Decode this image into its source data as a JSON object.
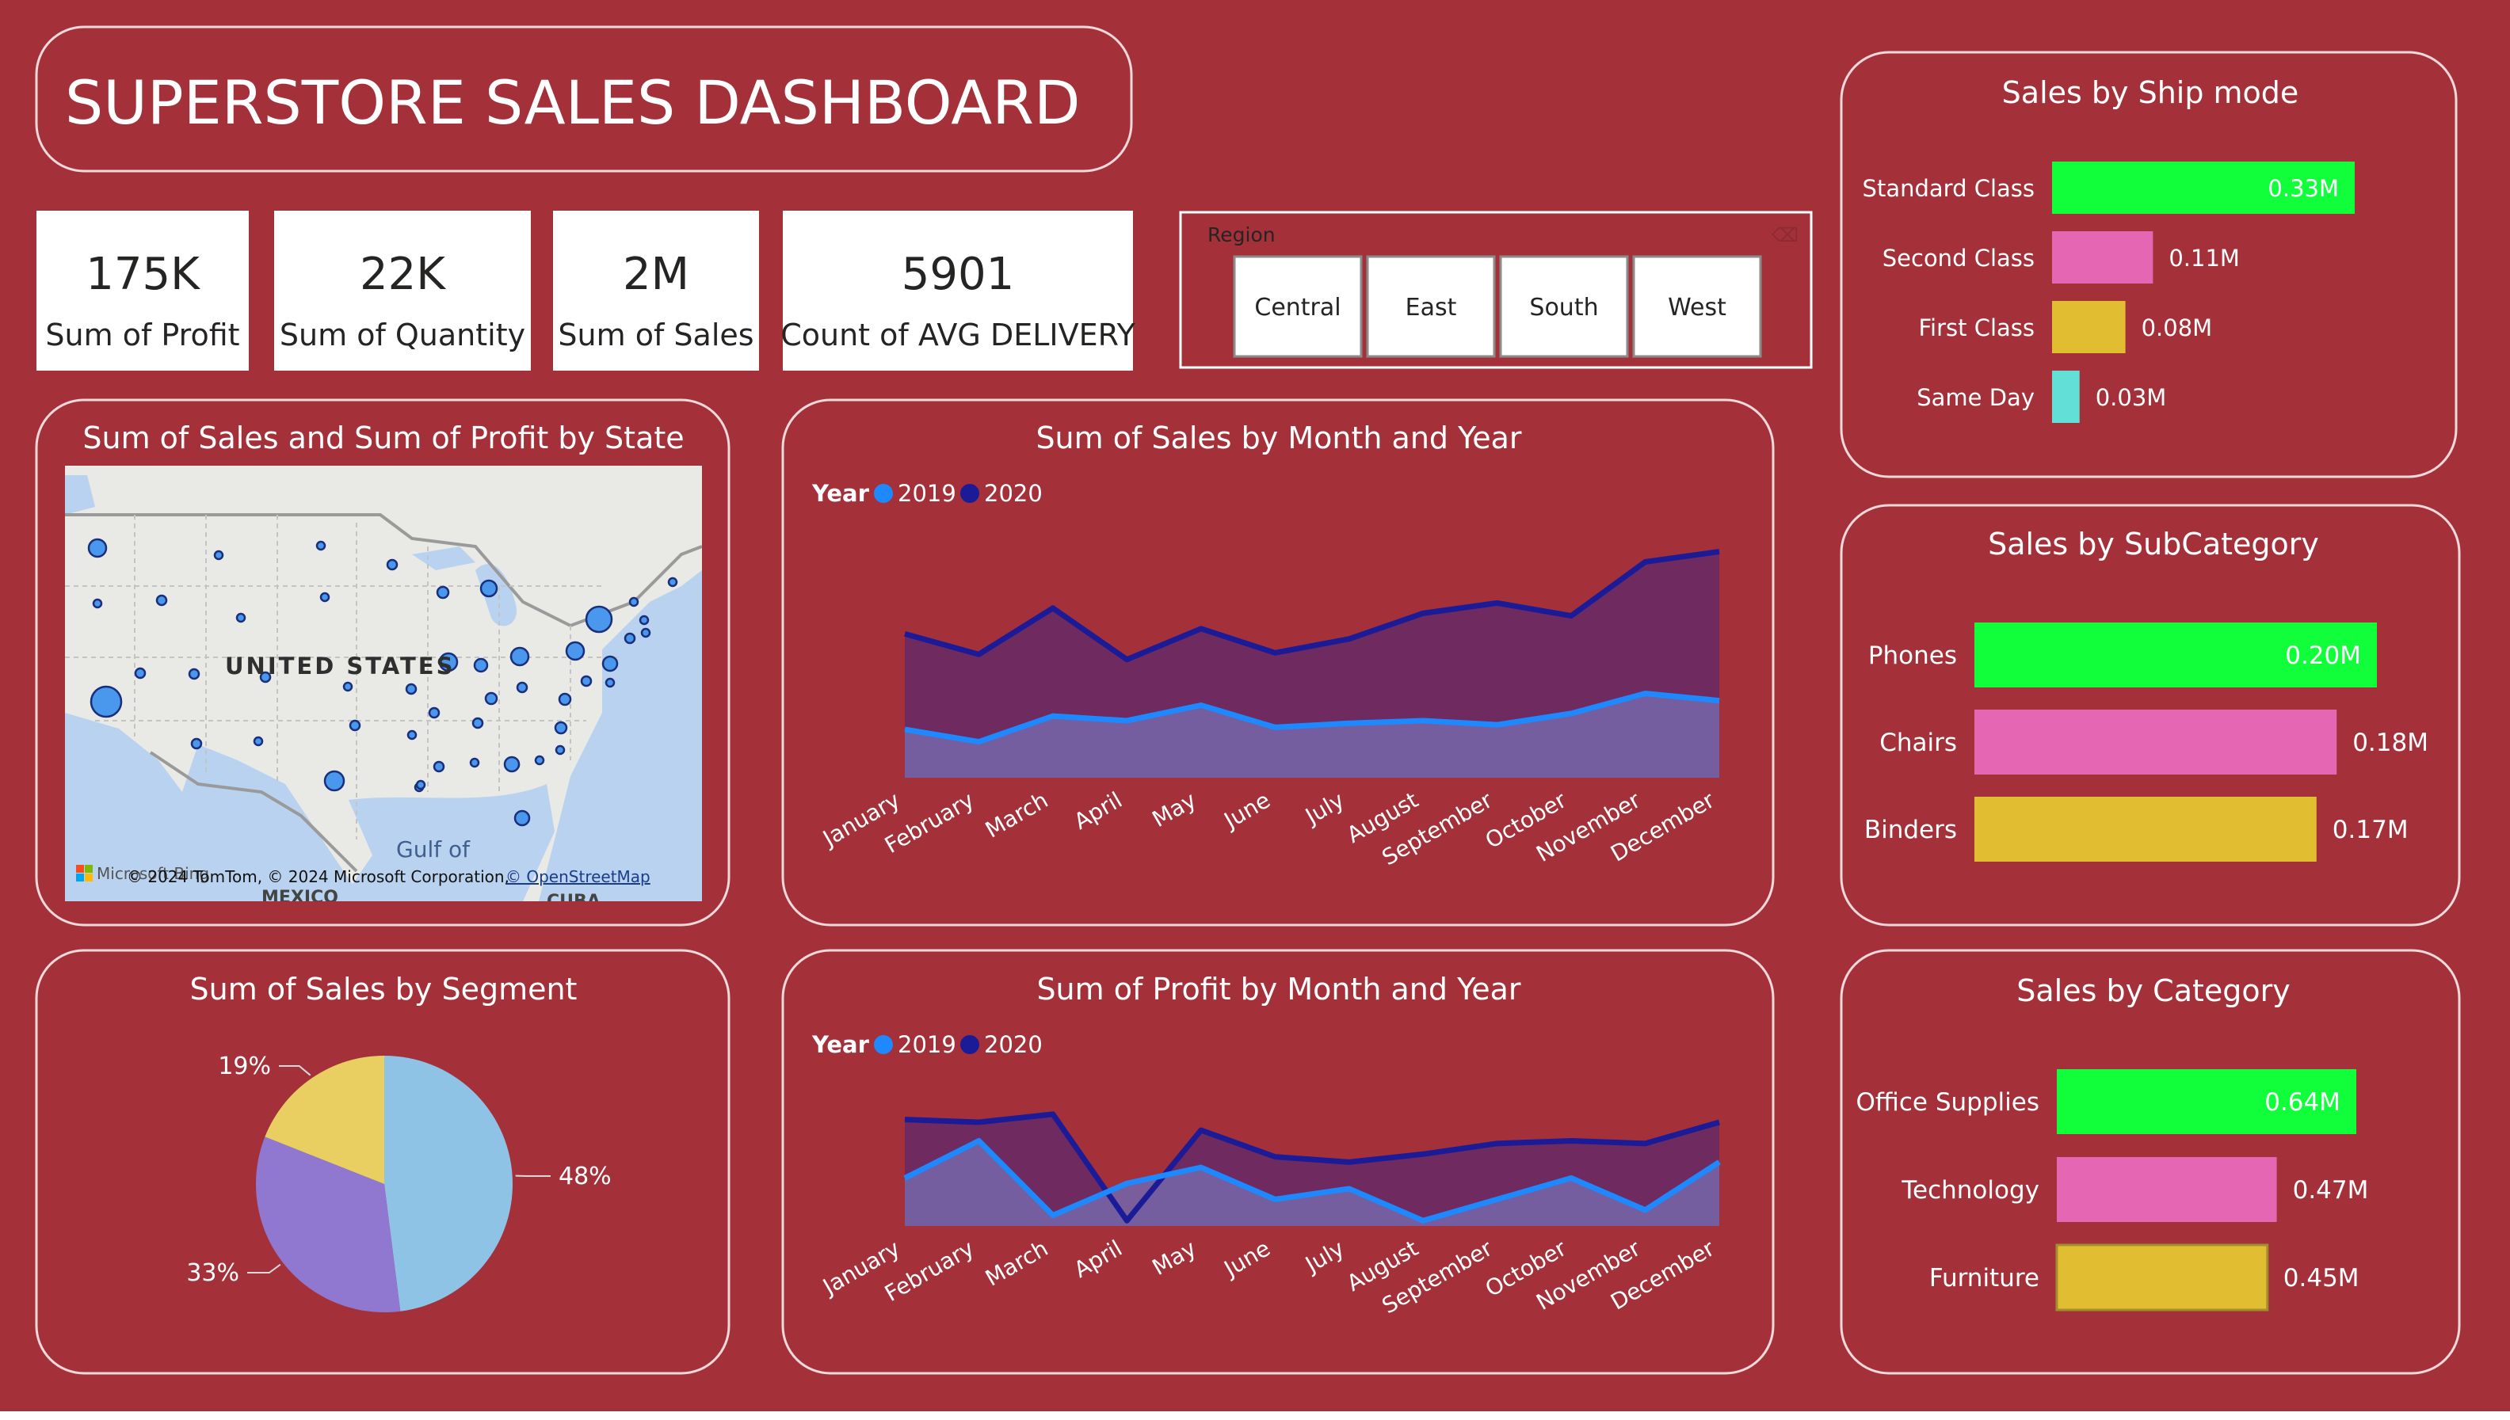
{
  "dashboard": {
    "title": "SUPERSTORE SALES DASHBOARD",
    "colors": {
      "background": "#a4313a",
      "panel_border": "#f1d9db",
      "text": "#ffffff",
      "green": "#11ff3a",
      "pink": "#e567b4",
      "gold": "#e0bd31",
      "cyan": "#62dfd6",
      "series_2019": "#1e88ff",
      "series_2020": "#1b1b98"
    }
  },
  "kpis": [
    {
      "value": "175K",
      "label": "Sum of Profit"
    },
    {
      "value": "22K",
      "label": "Sum of Quantity"
    },
    {
      "value": "2M",
      "label": "Sum of Sales"
    },
    {
      "value": "5901",
      "label": "Count of AVG DELIVERY"
    }
  ],
  "region_slicer": {
    "title": "Region",
    "options": [
      "Central",
      "East",
      "South",
      "West"
    ]
  },
  "map": {
    "title": "Sum of Sales and Sum of Profit by State",
    "country_label": "UNITED STATES",
    "gulf_label": "Gulf of",
    "mexico_label": "MEXICO",
    "cuba_label": "CUBA",
    "attribution": "© 2024 TomTom, © 2024 Microsoft Corporation,",
    "attribution_link": "© OpenStreetMap",
    "logo_text": "Microsoft Bing"
  },
  "legend": {
    "title": "Year",
    "items": [
      "2019",
      "2020"
    ]
  },
  "chart_data": [
    {
      "id": "sales_by_month",
      "type": "area",
      "title": "Sum of Sales by Month and Year",
      "legend_title": "Year",
      "categories": [
        "January",
        "February",
        "March",
        "April",
        "May",
        "June",
        "July",
        "August",
        "September",
        "October",
        "November",
        "December"
      ],
      "series": [
        {
          "name": "2019",
          "values": [
            94,
            70,
            120,
            111,
            141,
            98,
            106,
            111,
            103,
            125,
            164,
            150
          ]
        },
        {
          "name": "2020",
          "values": [
            280,
            240,
            330,
            230,
            290,
            243,
            270,
            320,
            340,
            315,
            420,
            440
          ]
        }
      ],
      "ylim": [
        0,
        450
      ]
    },
    {
      "id": "profit_by_month",
      "type": "area",
      "title": "Sum of Profit by Month and Year",
      "legend_title": "Year",
      "categories": [
        "January",
        "February",
        "March",
        "April",
        "May",
        "June",
        "July",
        "August",
        "September",
        "October",
        "November",
        "December"
      ],
      "series": [
        {
          "name": "2019",
          "values": [
            9,
            16,
            2,
            8,
            11,
            5,
            7,
            1,
            5,
            9,
            3,
            12
          ]
        },
        {
          "name": "2020",
          "values": [
            20,
            19.5,
            21,
            1,
            18,
            13,
            12,
            13.5,
            15.5,
            16,
            15.5,
            19.5
          ]
        }
      ],
      "ylim": [
        0,
        25
      ]
    },
    {
      "id": "sales_by_segment",
      "type": "pie",
      "title": "Sum of Sales by Segment",
      "slices": [
        {
          "value": 48,
          "label": "48%",
          "color": "#8ec3e5"
        },
        {
          "value": 33,
          "label": "33%",
          "color": "#9077cf"
        },
        {
          "value": 19,
          "label": "19%",
          "color": "#e9cf62"
        }
      ]
    },
    {
      "id": "sales_by_ship_mode",
      "type": "bar",
      "orientation": "horizontal",
      "title": "Sales by Ship mode",
      "categories": [
        "Standard Class",
        "Second Class",
        "First Class",
        "Same Day"
      ],
      "values": [
        0.33,
        0.11,
        0.08,
        0.03
      ],
      "labels": [
        "0.33M",
        "0.11M",
        "0.08M",
        "0.03M"
      ],
      "colors": [
        "#11ff3a",
        "#e567b4",
        "#e0bd31",
        "#62dfd6"
      ]
    },
    {
      "id": "sales_by_subcategory",
      "type": "bar",
      "orientation": "horizontal",
      "title": "Sales by SubCategory",
      "categories": [
        "Phones",
        "Chairs",
        "Binders"
      ],
      "values": [
        0.2,
        0.18,
        0.17
      ],
      "labels": [
        "0.20M",
        "0.18M",
        "0.17M"
      ],
      "colors": [
        "#11ff3a",
        "#e567b4",
        "#e0bd31"
      ]
    },
    {
      "id": "sales_by_category",
      "type": "bar",
      "orientation": "horizontal",
      "title": "Sales by Category",
      "categories": [
        "Office Supplies",
        "Technology",
        "Furniture"
      ],
      "values": [
        0.64,
        0.47,
        0.45
      ],
      "labels": [
        "0.64M",
        "0.47M",
        "0.45M"
      ],
      "colors": [
        "#11ff3a",
        "#e567b4",
        "#e0bd31"
      ]
    }
  ]
}
